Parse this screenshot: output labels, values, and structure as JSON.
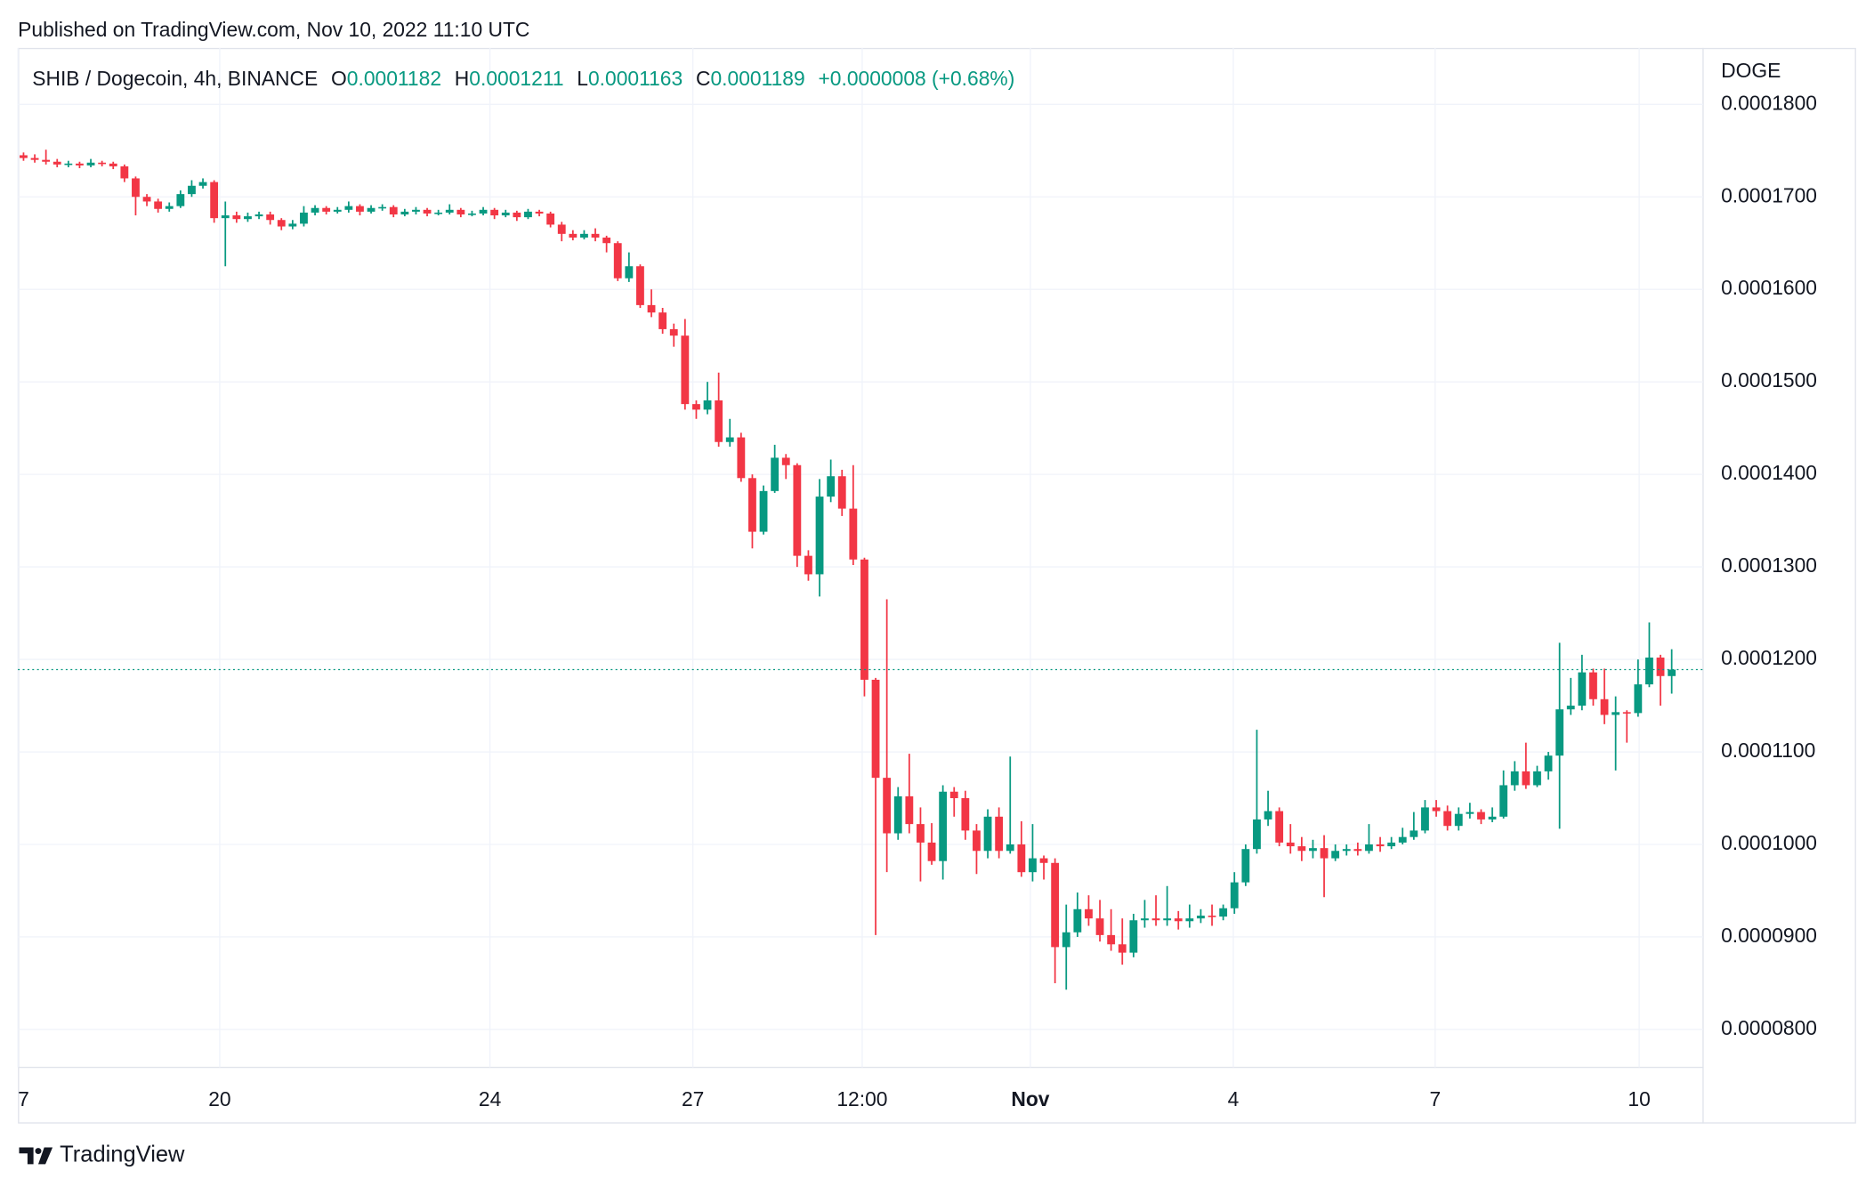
{
  "published": "Published on TradingView.com, Nov 10, 2022 11:10 UTC",
  "brand": "TradingView",
  "chart_data": {
    "type": "candlestick",
    "title": "SHIB / Dogecoin, 4h, BINANCE",
    "ohlc_labels": [
      "O",
      "H",
      "L",
      "C"
    ],
    "change": "+0.0000008 (+0.68%)",
    "y_axis_label": "DOGE",
    "up_color": "#089981",
    "down_color": "#f23645",
    "grid": true,
    "xlim": [
      0,
      150.3
    ],
    "xticks": [
      {
        "value": 0,
        "label": "17"
      },
      {
        "value": 18.0,
        "label": "20"
      },
      {
        "value": 42.1,
        "label": "24"
      },
      {
        "value": 60.2,
        "label": "27"
      },
      {
        "value": 75.3,
        "label": "12:00"
      },
      {
        "value": 90.3,
        "label": "Nov"
      },
      {
        "value": 108.4,
        "label": "4"
      },
      {
        "value": 126.4,
        "label": "7"
      },
      {
        "value": 144.6,
        "label": "10"
      }
    ],
    "ylim": [
      7.59e-05,
      0.0001861
    ],
    "yticks": [
      {
        "value": 8e-05,
        "label": "0.0000800"
      },
      {
        "value": 9e-05,
        "label": "0.0000900"
      },
      {
        "value": 0.0001,
        "label": "0.0001000"
      },
      {
        "value": 0.00011,
        "label": "0.0001100"
      },
      {
        "value": 0.00012,
        "label": "0.0001200"
      },
      {
        "value": 0.00013,
        "label": "0.0001300"
      },
      {
        "value": 0.00014,
        "label": "0.0001400"
      },
      {
        "value": 0.00015,
        "label": "0.0001500"
      },
      {
        "value": 0.00016,
        "label": "0.0001600"
      },
      {
        "value": 0.00017,
        "label": "0.0001700"
      },
      {
        "value": 0.00018,
        "label": "0.0001800"
      }
    ],
    "open": [
      0.0001745,
      0.0001742,
      0.000174,
      0.0001738,
      0.0001735,
      0.0001736,
      0.0001734,
      0.0001737,
      0.0001736,
      0.0001733,
      0.000172,
      0.00017,
      0.0001695,
      0.0001687,
      0.000169,
      0.0001703,
      0.0001712,
      0.0001716,
      0.0001677,
      0.000168,
      0.0001676,
      0.0001679,
      0.0001681,
      0.0001675,
      0.0001668,
      0.0001671,
      0.0001683,
      0.0001688,
      0.0001684,
      0.0001686,
      0.000169,
      0.0001684,
      0.0001688,
      0.0001689,
      0.0001681,
      0.0001684,
      0.0001686,
      0.0001682,
      0.0001683,
      0.0001686,
      0.0001681,
      0.0001682,
      0.0001686,
      0.000168,
      0.0001683,
      0.0001678,
      0.0001684,
      0.0001682,
      0.000167,
      0.000166,
      0.0001656,
      0.000166,
      0.0001656,
      0.000165,
      0.0001612,
      0.0001625,
      0.0001583,
      0.0001575,
      0.0001557,
      0.000155,
      0.0001476,
      0.000147,
      0.000148,
      0.0001435,
      0.000144,
      0.0001396,
      0.0001338,
      0.0001382,
      0.0001418,
      0.000141,
      0.0001312,
      0.0001292,
      0.0001376,
      0.0001398,
      0.0001363,
      0.0001308,
      0.0001178,
      0.0001072,
      0.0001012,
      0.0001052,
      0.0001022,
      0.0001002,
      9.82e-05,
      0.0001057,
      0.000105,
      0.0001015,
      9.93e-05,
      0.000103,
      9.93e-05,
      0.0001,
      9.7e-05,
      9.85e-05,
      9.8e-05,
      8.89e-05,
      9.05e-05,
      9.3e-05,
      9.2e-05,
      9.02e-05,
      8.92e-05,
      8.83e-05,
      9.18e-05,
      9.2e-05,
      9.18e-05,
      9.2e-05,
      9.17e-05,
      9.2e-05,
      9.23e-05,
      9.22e-05,
      9.31e-05,
      9.59e-05,
      9.95e-05,
      0.0001027,
      0.0001036,
      0.0001002,
      9.98e-05,
      9.93e-05,
      9.96e-05,
      9.85e-05,
      9.93e-05,
      9.95e-05,
      9.93e-05,
      0.0001,
      9.98e-05,
      0.0001002,
      0.0001008,
      0.0001015,
      0.000104,
      0.0001036,
      0.000102,
      0.0001033,
      0.0001035,
      0.0001027,
      0.000103,
      0.0001064,
      0.0001079,
      0.0001064,
      0.0001079,
      0.0001096,
      0.0001146,
      0.000115,
      0.0001186,
      0.0001157,
      0.000114,
      0.0001143,
      0.0001142,
      0.0001173,
      0.0001202,
      0.0001182
    ],
    "high": [
      0.0001748,
      0.0001746,
      0.0001751,
      0.0001741,
      0.0001739,
      0.0001738,
      0.0001741,
      0.0001739,
      0.0001738,
      0.0001735,
      0.0001722,
      0.0001703,
      0.0001698,
      0.0001694,
      0.0001707,
      0.0001718,
      0.000172,
      0.0001718,
      0.0001695,
      0.0001684,
      0.0001683,
      0.0001684,
      0.0001684,
      0.0001677,
      0.0001675,
      0.000169,
      0.0001691,
      0.000169,
      0.0001689,
      0.0001695,
      0.0001692,
      0.0001691,
      0.0001692,
      0.0001691,
      0.0001687,
      0.0001689,
      0.0001688,
      0.0001686,
      0.0001692,
      0.0001688,
      0.0001685,
      0.0001689,
      0.0001688,
      0.0001686,
      0.0001685,
      0.0001687,
      0.0001686,
      0.0001684,
      0.0001673,
      0.0001664,
      0.0001664,
      0.0001666,
      0.0001658,
      0.0001652,
      0.000164,
      0.0001627,
      0.00016,
      0.000158,
      0.0001563,
      0.0001568,
      0.000148,
      0.00015,
      0.000151,
      0.000146,
      0.0001445,
      0.00014,
      0.0001388,
      0.0001432,
      0.0001422,
      0.0001412,
      0.0001318,
      0.0001395,
      0.0001416,
      0.0001405,
      0.000141,
      0.000131,
      0.000118,
      0.0001265,
      0.0001062,
      0.0001098,
      0.000104,
      0.0001023,
      0.0001064,
      0.0001062,
      0.0001058,
      0.0001022,
      0.0001038,
      0.000104,
      0.0001095,
      0.0001025,
      0.0001022,
      9.88e-05,
      9.85e-05,
      9.35e-05,
      9.48e-05,
      9.45e-05,
      9.4e-05,
      9.3e-05,
      9.2e-05,
      9.25e-05,
      9.4e-05,
      9.45e-05,
      9.55e-05,
      9.28e-05,
      9.35e-05,
      9.3e-05,
      9.35e-05,
      9.35e-05,
      9.7e-05,
      0.0001,
      0.0001124,
      0.0001058,
      0.000104,
      0.0001022,
      0.0001008,
      0.0001005,
      0.000101,
      0.0001,
      0.0001,
      0.0001002,
      0.0001022,
      0.0001008,
      0.0001008,
      0.0001018,
      0.0001035,
      0.0001048,
      0.0001048,
      0.0001042,
      0.000104,
      0.0001045,
      0.0001038,
      0.000104,
      0.000108,
      0.000109,
      0.000111,
      0.0001085,
      0.00011,
      0.0001218,
      0.000118,
      0.0001205,
      0.000119,
      0.000119,
      0.000116,
      0.0001145,
      0.00012,
      0.000124,
      0.0001205,
      0.0001211
    ],
    "low": [
      0.0001739,
      0.0001737,
      0.0001735,
      0.0001732,
      0.0001732,
      0.0001731,
      0.0001732,
      0.0001733,
      0.000173,
      0.0001716,
      0.000168,
      0.000169,
      0.0001683,
      0.0001684,
      0.0001688,
      0.00017,
      0.0001709,
      0.0001672,
      0.0001625,
      0.0001672,
      0.0001673,
      0.0001676,
      0.000167,
      0.0001664,
      0.0001665,
      0.0001668,
      0.000168,
      0.0001681,
      0.0001682,
      0.0001683,
      0.000168,
      0.0001682,
      0.0001685,
      0.0001678,
      0.0001679,
      0.0001681,
      0.0001679,
      0.000168,
      0.0001681,
      0.0001678,
      0.0001679,
      0.000168,
      0.0001676,
      0.0001678,
      0.0001674,
      0.0001676,
      0.0001679,
      0.0001667,
      0.0001652,
      0.0001653,
      0.0001654,
      0.0001652,
      0.000164,
      0.0001609,
      0.0001608,
      0.000158,
      0.000157,
      0.0001552,
      0.0001538,
      0.000147,
      0.000146,
      0.0001465,
      0.000143,
      0.000143,
      0.0001392,
      0.000132,
      0.0001335,
      0.000138,
      0.0001395,
      0.00013,
      0.0001285,
      0.0001268,
      0.000137,
      0.0001355,
      0.0001302,
      0.000116,
      9.02e-05,
      9.7e-05,
      0.0001005,
      0.0001012,
      9.6e-05,
      9.78e-05,
      9.62e-05,
      0.000103,
      0.0001005,
      9.68e-05,
      9.85e-05,
      9.85e-05,
      9.9e-05,
      9.65e-05,
      9.6e-05,
      9.62e-05,
      8.5e-05,
      8.43e-05,
      9e-05,
      9.12e-05,
      8.95e-05,
      8.85e-05,
      8.7e-05,
      8.78e-05,
      9.1e-05,
      9.12e-05,
      9.12e-05,
      9.08e-05,
      9.1e-05,
      9.15e-05,
      9.12e-05,
      9.18e-05,
      9.25e-05,
      9.55e-05,
      9.9e-05,
      0.000102,
      9.98e-05,
      9.9e-05,
      9.82e-05,
      9.85e-05,
      9.43e-05,
      9.82e-05,
      9.88e-05,
      9.88e-05,
      9.9e-05,
      9.92e-05,
      9.95e-05,
      0.0001,
      0.0001005,
      0.0001012,
      0.000103,
      0.0001015,
      0.0001015,
      0.0001028,
      0.0001022,
      0.0001024,
      0.0001028,
      0.0001058,
      0.000106,
      0.0001062,
      0.000107,
      0.0001017,
      0.000114,
      0.0001145,
      0.000115,
      0.000113,
      0.000108,
      0.000111,
      0.0001138,
      0.000117,
      0.000115,
      0.0001163
    ],
    "close": [
      0.0001742,
      0.000174,
      0.0001738,
      0.0001735,
      0.0001736,
      0.0001734,
      0.0001737,
      0.0001736,
      0.0001733,
      0.000172,
      0.00017,
      0.0001695,
      0.0001687,
      0.000169,
      0.0001703,
      0.0001712,
      0.0001716,
      0.0001677,
      0.000168,
      0.0001676,
      0.0001679,
      0.0001681,
      0.0001675,
      0.0001668,
      0.0001671,
      0.0001683,
      0.0001688,
      0.0001684,
      0.0001686,
      0.000169,
      0.0001684,
      0.0001688,
      0.0001689,
      0.0001681,
      0.0001684,
      0.0001686,
      0.0001682,
      0.0001683,
      0.0001686,
      0.0001681,
      0.0001682,
      0.0001686,
      0.000168,
      0.0001683,
      0.0001678,
      0.0001684,
      0.0001682,
      0.000167,
      0.000166,
      0.0001656,
      0.000166,
      0.0001656,
      0.000165,
      0.0001612,
      0.0001625,
      0.0001583,
      0.0001575,
      0.0001557,
      0.000155,
      0.0001476,
      0.000147,
      0.000148,
      0.0001435,
      0.000144,
      0.0001396,
      0.0001338,
      0.0001382,
      0.0001418,
      0.000141,
      0.0001312,
      0.0001292,
      0.0001376,
      0.0001398,
      0.0001363,
      0.0001308,
      0.0001178,
      0.0001072,
      0.0001012,
      0.0001052,
      0.0001022,
      0.0001002,
      9.82e-05,
      0.0001057,
      0.000105,
      0.0001015,
      9.93e-05,
      0.000103,
      9.93e-05,
      0.0001,
      9.7e-05,
      9.85e-05,
      9.8e-05,
      8.89e-05,
      9.05e-05,
      9.3e-05,
      9.2e-05,
      9.02e-05,
      8.92e-05,
      8.83e-05,
      9.18e-05,
      9.2e-05,
      9.18e-05,
      9.2e-05,
      9.17e-05,
      9.2e-05,
      9.23e-05,
      9.22e-05,
      9.31e-05,
      9.59e-05,
      9.95e-05,
      0.0001027,
      0.0001036,
      0.0001002,
      9.98e-05,
      9.93e-05,
      9.96e-05,
      9.85e-05,
      9.93e-05,
      9.95e-05,
      9.93e-05,
      0.0001,
      9.98e-05,
      0.0001002,
      0.0001008,
      0.0001015,
      0.000104,
      0.0001036,
      0.000102,
      0.0001033,
      0.0001035,
      0.0001027,
      0.000103,
      0.0001064,
      0.0001079,
      0.0001064,
      0.0001079,
      0.0001096,
      0.0001146,
      0.000115,
      0.0001186,
      0.0001157,
      0.000114,
      0.0001143,
      0.0001142,
      0.0001173,
      0.0001202,
      0.0001182,
      0.0001189
    ]
  }
}
